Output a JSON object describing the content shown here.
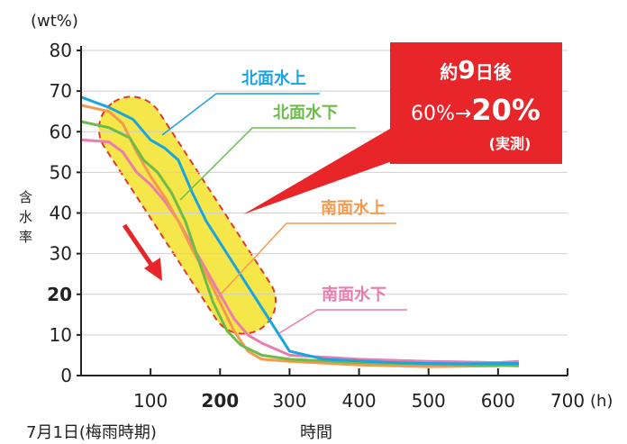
{
  "colors": {
    "north_upper": "#1aa4e0",
    "north_lower": "#6dbb4a",
    "south_upper": "#f39a4f",
    "south_lower": "#ea7cae",
    "highlight_fill": "#f5e64a",
    "highlight_border": "#e03a2e",
    "callout": "#e8262a",
    "axis": "#222222"
  },
  "chart_data": {
    "type": "line",
    "y_unit_label": "(wt%)",
    "x_unit_label": "(h)",
    "ylabel": "含水率",
    "xlabel": "時間",
    "x_start_label": "7月1日(梅雨時期)",
    "xlim": [
      0,
      700
    ],
    "ylim": [
      0,
      80
    ],
    "y_ticks": [
      "0",
      "10",
      "20",
      "30",
      "40",
      "50",
      "60",
      "70",
      "80"
    ],
    "y_ticks_bold": [
      "20"
    ],
    "x_ticks": [
      "100",
      "200",
      "300",
      "400",
      "500",
      "600",
      "700"
    ],
    "x_ticks_bold": [
      "200"
    ],
    "grid": "horizontal",
    "series": [
      {
        "name": "北面水上",
        "color_key": "north_upper",
        "points": [
          [
            0,
            68.5
          ],
          [
            40,
            66
          ],
          [
            75,
            63
          ],
          [
            100,
            58
          ],
          [
            120,
            56
          ],
          [
            140,
            53
          ],
          [
            160,
            45
          ],
          [
            180,
            38
          ],
          [
            210,
            30
          ],
          [
            240,
            22
          ],
          [
            270,
            14
          ],
          [
            300,
            6
          ],
          [
            350,
            4
          ],
          [
            400,
            3.6
          ],
          [
            450,
            3.2
          ],
          [
            500,
            3
          ],
          [
            550,
            2.9
          ],
          [
            630,
            3
          ]
        ]
      },
      {
        "name": "北面水下",
        "color_key": "north_lower",
        "points": [
          [
            0,
            62.5
          ],
          [
            40,
            61
          ],
          [
            70,
            58.5
          ],
          [
            90,
            53
          ],
          [
            110,
            50
          ],
          [
            130,
            45
          ],
          [
            150,
            38
          ],
          [
            170,
            28
          ],
          [
            190,
            18
          ],
          [
            210,
            11
          ],
          [
            230,
            7.5
          ],
          [
            260,
            5
          ],
          [
            300,
            4
          ],
          [
            400,
            3.2
          ],
          [
            500,
            2.8
          ],
          [
            600,
            2.5
          ],
          [
            630,
            2.4
          ]
        ]
      },
      {
        "name": "南面水上",
        "color_key": "south_upper",
        "points": [
          [
            0,
            66.5
          ],
          [
            40,
            65
          ],
          [
            60,
            62
          ],
          [
            80,
            55
          ],
          [
            100,
            49
          ],
          [
            120,
            44
          ],
          [
            140,
            38
          ],
          [
            160,
            31
          ],
          [
            180,
            25
          ],
          [
            200,
            18
          ],
          [
            220,
            11
          ],
          [
            240,
            6
          ],
          [
            260,
            4
          ],
          [
            300,
            3.5
          ],
          [
            400,
            2.6
          ],
          [
            500,
            2.2
          ],
          [
            600,
            2.4
          ],
          [
            630,
            2.8
          ]
        ]
      },
      {
        "name": "南面水下",
        "color_key": "south_lower",
        "points": [
          [
            0,
            58
          ],
          [
            40,
            57.5
          ],
          [
            60,
            55
          ],
          [
            80,
            50
          ],
          [
            100,
            47
          ],
          [
            120,
            43
          ],
          [
            140,
            38
          ],
          [
            160,
            32
          ],
          [
            180,
            26
          ],
          [
            200,
            20
          ],
          [
            220,
            14
          ],
          [
            240,
            10
          ],
          [
            260,
            8
          ],
          [
            300,
            5
          ],
          [
            400,
            4
          ],
          [
            500,
            3.5
          ],
          [
            600,
            3.2
          ],
          [
            630,
            3.5
          ]
        ]
      }
    ],
    "series_labels": [
      "北面水上",
      "北面水下",
      "南面水上",
      "南面水下"
    ],
    "callout": {
      "line1_prefix": "約",
      "line1_number": "9",
      "line1_suffix": "日後",
      "line2_from": "60%→",
      "line2_to": "20%",
      "line3": "(実測)"
    }
  }
}
